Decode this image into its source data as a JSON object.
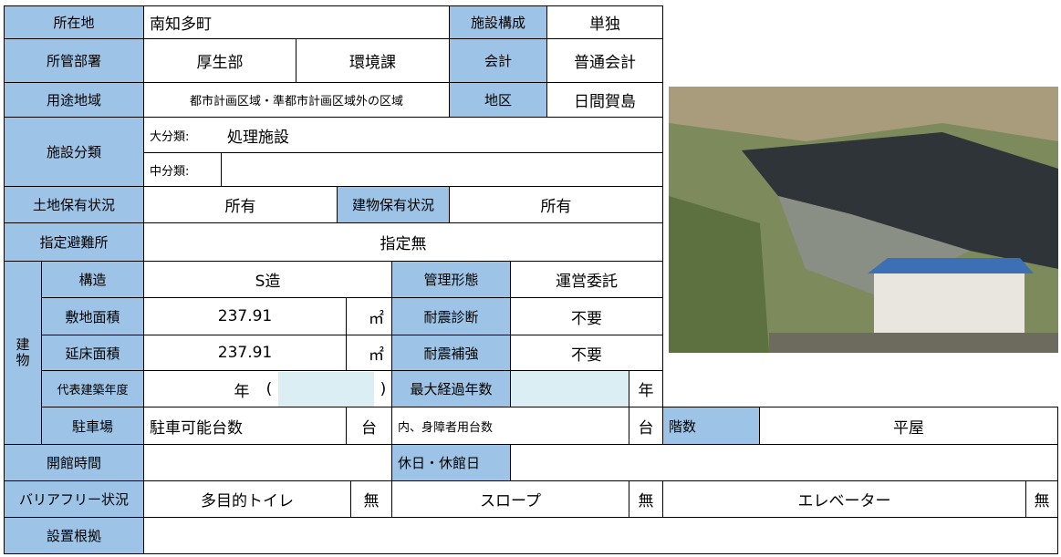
{
  "rows": [
    [
      "所在地",
      "南知多町",
      "施設構成",
      "単独"
    ],
    [
      "所管部署",
      "厚生部",
      "環境課",
      "会計",
      "普通会計"
    ],
    [
      "用途地域",
      "都市計画区域・準都市計画区域外の区域",
      "地区",
      "日間賀島"
    ],
    [
      "施設分類",
      "大分類:",
      "処理施設"
    ],
    [
      "中分類:"
    ],
    [
      "土地保有状況",
      "所有",
      "建物保有状況",
      "所有"
    ],
    [
      "指定避難所",
      "指定無"
    ],
    [
      "建物",
      "構造",
      "S造",
      "管理形態",
      "運営委託"
    ],
    [
      "敷地面積",
      "237.91",
      "㎡",
      "耐震診断",
      "不要"
    ],
    [
      "延床面積",
      "237.91",
      "㎡",
      "耐震補強",
      "不要"
    ],
    [
      "代表建築年度",
      "年",
      "(",
      ")",
      "最大経過年数",
      "年"
    ],
    [
      "駐車場",
      "駐車可能台数",
      "台",
      "内、身障者用台数",
      "台",
      "階数",
      "平屋"
    ],
    [
      "開館時間",
      "休日・休館日"
    ],
    [
      "バリアフリー状況",
      "多目的トイレ",
      "無",
      "スロープ",
      "無",
      "エレベーター",
      "無"
    ],
    [
      "設置根拠"
    ]
  ]
}
